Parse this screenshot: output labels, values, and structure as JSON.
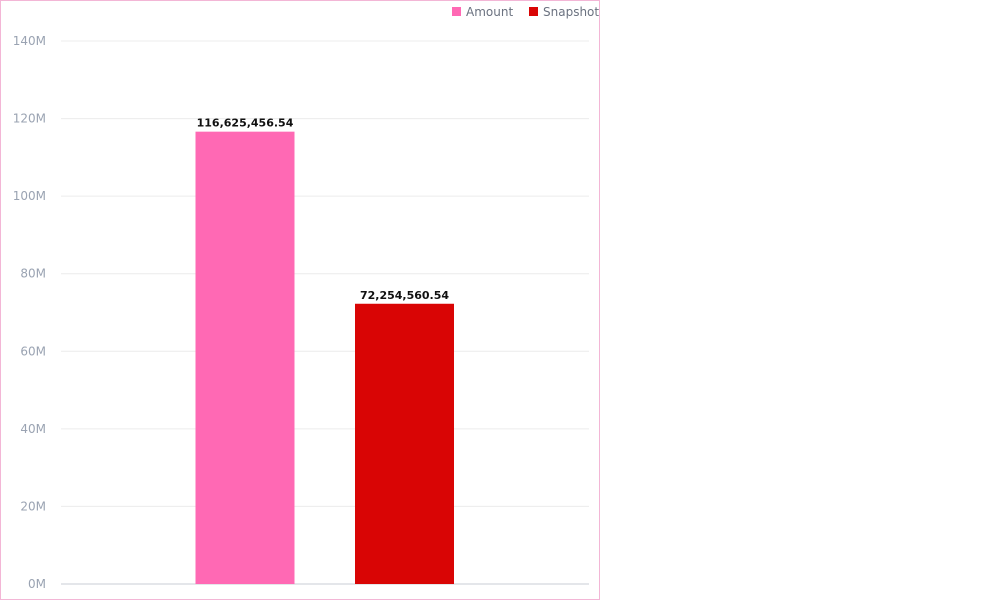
{
  "chart_data": {
    "type": "bar",
    "categories": [
      "Amount",
      "Snapshot"
    ],
    "series": [
      {
        "name": "Amount",
        "value": 116625456.54,
        "color": "#ff69b4"
      },
      {
        "name": "Snapshot",
        "value": 72254560.54,
        "color": "#d90505"
      }
    ],
    "data_labels": [
      "116,625,456.54",
      "72,254,560.54"
    ],
    "ylim": [
      0,
      140000000
    ],
    "y_ticks": [
      0,
      20000000,
      40000000,
      60000000,
      80000000,
      100000000,
      120000000,
      140000000
    ],
    "y_tick_labels": [
      "0M",
      "20M",
      "40M",
      "60M",
      "80M",
      "100M",
      "120M",
      "140M"
    ],
    "grid": true,
    "legend_position": "top-right",
    "title": "",
    "xlabel": "",
    "ylabel": ""
  }
}
